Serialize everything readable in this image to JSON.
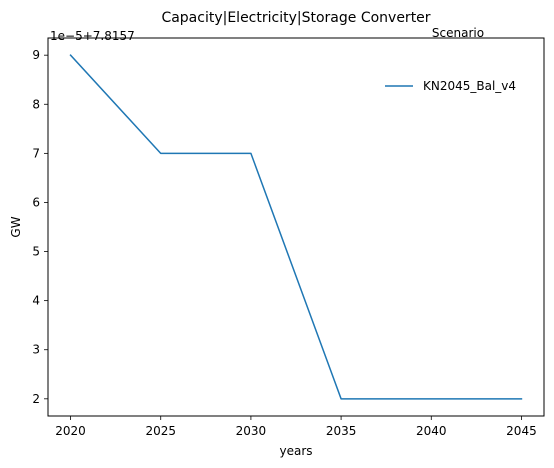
{
  "chart_data": {
    "type": "line",
    "title": "Capacity|Electricity|Storage Converter",
    "xlabel": "years",
    "ylabel": "GW",
    "offset_label": "1e−5+7.8157",
    "x": [
      2020,
      2025,
      2030,
      2035,
      2040,
      2045
    ],
    "x_ticks": [
      "2020",
      "2025",
      "2030",
      "2035",
      "2040",
      "2045"
    ],
    "y_ticks": [
      "2",
      "3",
      "4",
      "5",
      "6",
      "7",
      "8",
      "9"
    ],
    "xlim": [
      2018.75,
      2046.25
    ],
    "ylim": [
      1.65,
      9.35
    ],
    "grid": false,
    "legend": {
      "title": "Scenario",
      "placement": "top-right"
    },
    "series": [
      {
        "name": "KN2045_Bal_v4",
        "color": "#1f77b4",
        "values": [
          9,
          7,
          7,
          2,
          2,
          2
        ]
      }
    ]
  }
}
